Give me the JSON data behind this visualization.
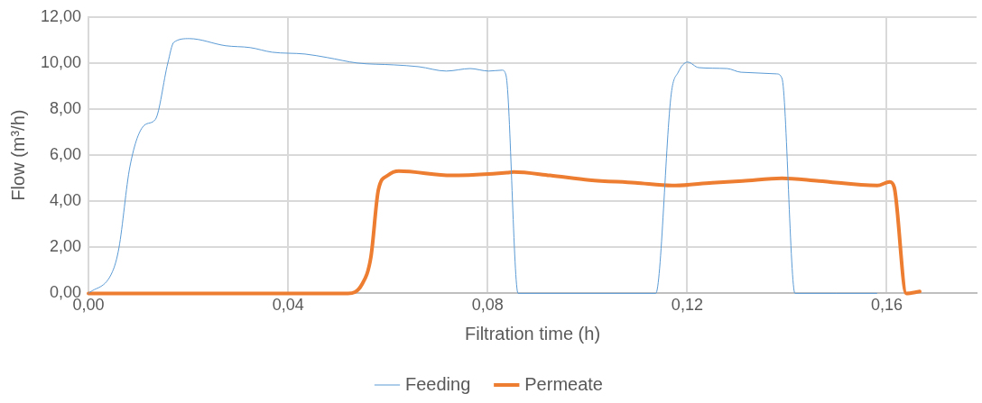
{
  "chart_data": {
    "type": "line",
    "xlabel": "Filtration time (h)",
    "ylabel": "Flow (m³/h)",
    "xlim": [
      0,
      0.178
    ],
    "xticks": [
      {
        "value": 0,
        "label": "0,00"
      },
      {
        "value": 0.04,
        "label": "0,04"
      },
      {
        "value": 0.08,
        "label": "0,08"
      },
      {
        "value": 0.12,
        "label": "0,12"
      },
      {
        "value": 0.16,
        "label": "0,16"
      }
    ],
    "ylim": [
      0,
      12
    ],
    "yticks": [
      {
        "value": 0,
        "label": "0,00"
      },
      {
        "value": 2,
        "label": "2,00"
      },
      {
        "value": 4,
        "label": "4,00"
      },
      {
        "value": 6,
        "label": "6,00"
      },
      {
        "value": 8,
        "label": "8,00"
      },
      {
        "value": 10,
        "label": "10,00"
      },
      {
        "value": 12,
        "label": "12,00"
      }
    ],
    "grid": true,
    "legend": "bottom",
    "marker": "none",
    "line_style": "solid",
    "series": [
      {
        "name": "Feeding",
        "color": "#5b9bd5",
        "x": [
          0,
          0.0048,
          0.0061,
          0.0083,
          0.0112,
          0.0134,
          0.0159,
          0.0171,
          0.0202,
          0.0275,
          0.0324,
          0.0368,
          0.0434,
          0.0478,
          0.0539,
          0.0612,
          0.0662,
          0.0717,
          0.0765,
          0.0802,
          0.0829,
          0.0837,
          0.0861,
          0.1137,
          0.1168,
          0.1182,
          0.1201,
          0.1223,
          0.128,
          0.1308,
          0.1379,
          0.139,
          0.1416,
          0.158
        ],
        "values": [
          0,
          0.94,
          1.97,
          5.5,
          7.3,
          7.55,
          10,
          10.9,
          11.06,
          10.75,
          10.67,
          10.47,
          10.39,
          10.24,
          10,
          9.92,
          9.84,
          9.65,
          9.76,
          9.65,
          9.69,
          9.45,
          0,
          0,
          8.66,
          9.6,
          10.04,
          9.8,
          9.76,
          9.6,
          9.53,
          9.33,
          0,
          0
        ]
      },
      {
        "name": "Permeate",
        "color": "#ed7d31",
        "x": [
          0,
          0.052,
          0.0548,
          0.0566,
          0.0581,
          0.06,
          0.0622,
          0.0728,
          0.0839,
          0.0852,
          0.0925,
          0.1004,
          0.1096,
          0.117,
          0.125,
          0.1311,
          0.139,
          0.1464,
          0.1581,
          0.1606,
          0.1615,
          0.1639,
          0.1666
        ],
        "values": [
          0,
          0,
          0.39,
          1.57,
          4.49,
          5.12,
          5.31,
          5.12,
          5.24,
          5.27,
          5.12,
          4.92,
          4.8,
          4.68,
          4.8,
          4.88,
          5,
          4.88,
          4.68,
          4.84,
          4.6,
          0,
          0.08
        ]
      }
    ]
  }
}
